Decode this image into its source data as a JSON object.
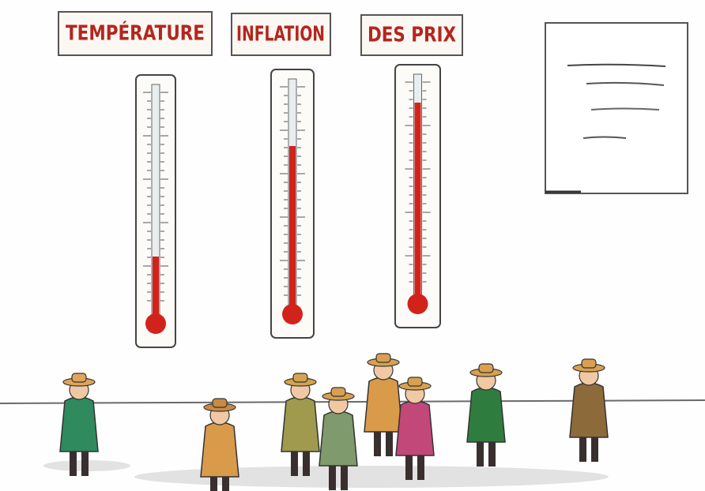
{
  "signs": [
    "TEMPÉRATURE",
    "INFLATION",
    "DES PRIX"
  ]
}
